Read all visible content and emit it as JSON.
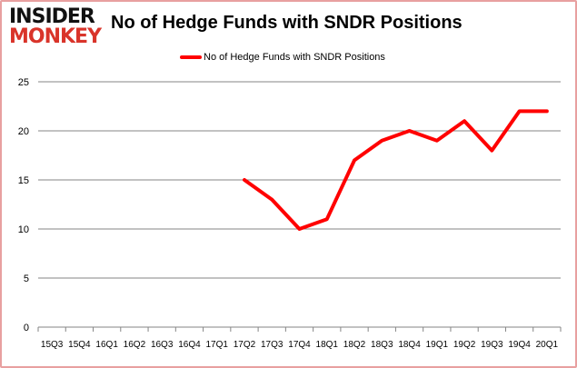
{
  "logo": {
    "line1": "INSIDER",
    "line2": "MONKEY"
  },
  "chart_data": {
    "type": "line",
    "title": "No of Hedge Funds with SNDR Positions",
    "xlabel": "",
    "ylabel": "",
    "categories": [
      "15Q3",
      "15Q4",
      "16Q1",
      "16Q2",
      "16Q3",
      "16Q4",
      "17Q1",
      "17Q2",
      "17Q3",
      "17Q4",
      "18Q1",
      "18Q2",
      "18Q3",
      "18Q4",
      "19Q1",
      "19Q2",
      "19Q3",
      "19Q4",
      "20Q1"
    ],
    "series": [
      {
        "name": "No of Hedge Funds with SNDR Positions",
        "color": "#ff0000",
        "values": [
          null,
          null,
          null,
          null,
          null,
          null,
          null,
          15,
          13,
          10,
          11,
          17,
          19,
          20,
          19,
          21,
          18,
          22,
          22
        ]
      }
    ],
    "ylim": [
      0,
      25
    ],
    "yticks": [
      0,
      5,
      10,
      15,
      20,
      25
    ],
    "grid": true,
    "legend": "top"
  }
}
